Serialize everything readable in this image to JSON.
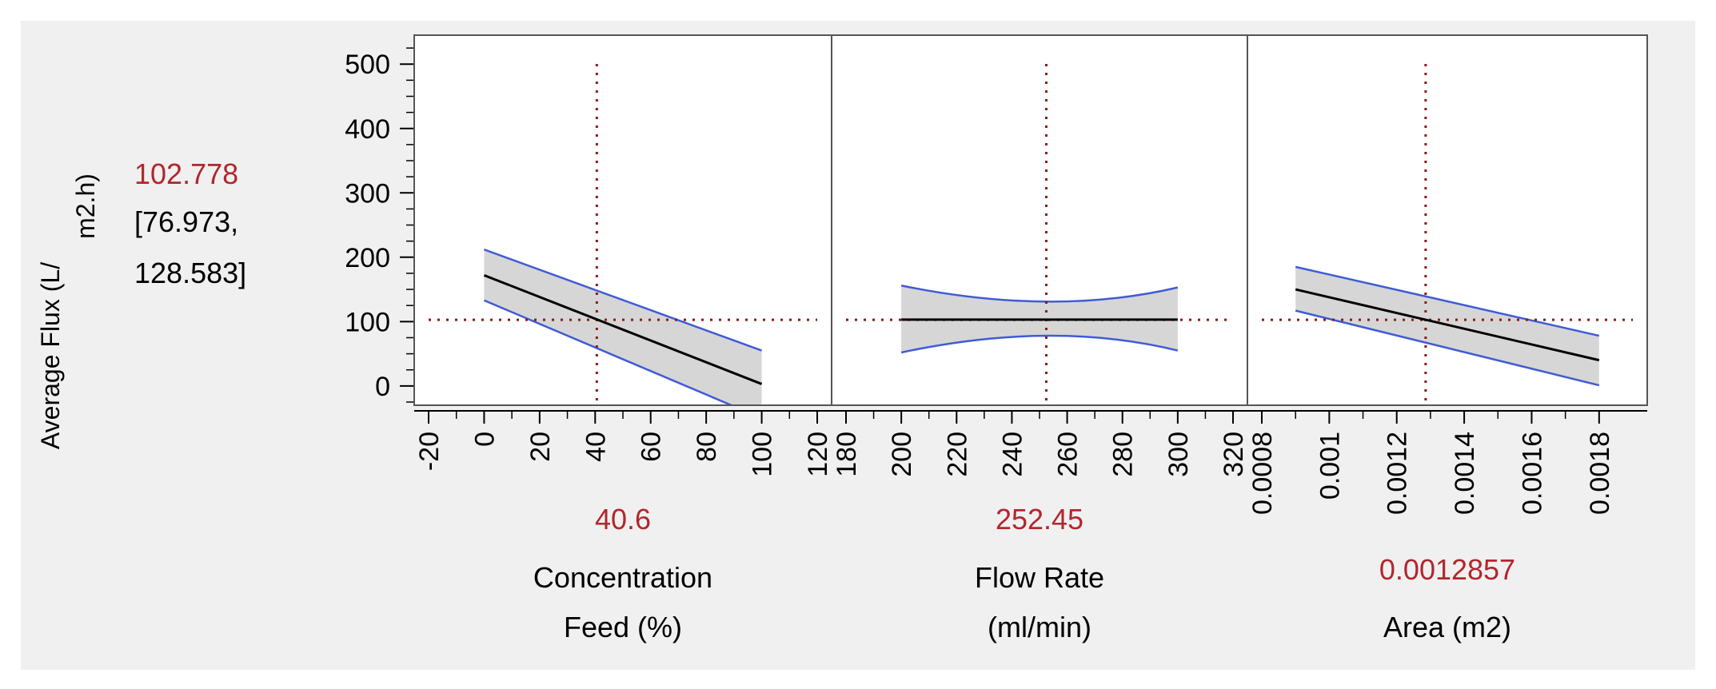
{
  "chart_data": {
    "type": "line",
    "title": "",
    "ylabel": "Average Flux (L/ m2.h)",
    "ylabel_lines": [
      "Average Flux (L/",
      "m2.h)"
    ],
    "ylim": [
      -30,
      545
    ],
    "yticks": [
      0,
      100,
      200,
      300,
      400,
      500
    ],
    "prediction": {
      "value": "102.778",
      "ci_line1": "[76.973,",
      "ci_line2": "128.583]",
      "y": 102.778
    },
    "colors": {
      "trace": "#000000",
      "confidence_band": "#3f5bd6",
      "band_fill": "#d6d6d6",
      "crosshair": "#8b1a1a",
      "value_text": "#b0272d"
    },
    "factors": [
      {
        "name": "Concentration Feed (%)",
        "name_lines": [
          "Concentration",
          "Feed (%)"
        ],
        "current": 40.6,
        "current_label": "40.6",
        "xlim": [
          -20,
          120
        ],
        "xticks": [
          -20,
          0,
          20,
          40,
          60,
          80,
          100,
          120
        ],
        "xtick_labels": [
          "-20",
          "0",
          "20",
          "40",
          "60",
          "80",
          "100",
          "120"
        ],
        "x": [
          0,
          100
        ],
        "y": [
          172,
          3
        ],
        "upper": [
          212,
          55
        ],
        "lower": [
          133,
          -50
        ],
        "band_mid": [
          0,
          40.6,
          100
        ]
      },
      {
        "name": "Flow Rate (ml/min)",
        "name_lines": [
          "Flow Rate",
          "(ml/min)"
        ],
        "current": 252.45,
        "current_label": "252.45",
        "xlim": [
          180,
          320
        ],
        "xticks": [
          180,
          200,
          220,
          240,
          260,
          280,
          300,
          320
        ],
        "xtick_labels": [
          "180",
          "200",
          "220",
          "240",
          "260",
          "280",
          "300",
          "320"
        ],
        "x": [
          200,
          300
        ],
        "y": [
          103,
          103
        ],
        "upper": [
          156,
          153
        ],
        "lower": [
          52,
          55
        ],
        "band_mid": [
          200,
          252.45,
          300
        ],
        "upper_mid": 131,
        "lower_mid": 78
      },
      {
        "name": "Area (m2)",
        "name_lines": [
          "Area (m2)"
        ],
        "current": 0.0012857,
        "current_label": "0.0012857",
        "xlim": [
          0.0008,
          0.0019
        ],
        "xticks": [
          0.0008,
          0.001,
          0.0012,
          0.0014,
          0.0016,
          0.0018
        ],
        "xtick_labels": [
          "0.0008",
          "0.001",
          "0.0012",
          "0.0014",
          "0.0016",
          "0.0018"
        ],
        "x": [
          0.0009,
          0.0018
        ],
        "y": [
          150,
          40
        ],
        "upper": [
          185,
          78
        ],
        "lower": [
          117,
          1
        ],
        "band_mid": [
          0.0009,
          0.0012857,
          0.0018
        ]
      }
    ]
  }
}
